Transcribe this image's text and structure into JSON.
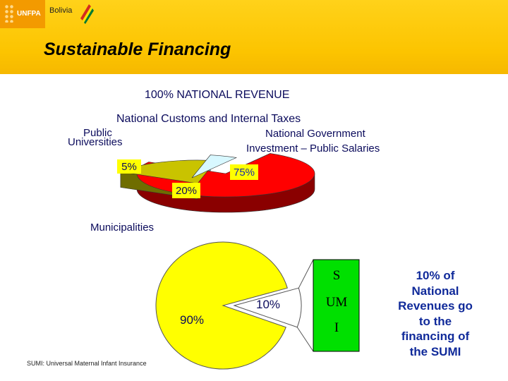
{
  "header": {
    "logo_text": "UNFPA",
    "country": "Bolivia",
    "title": "Sustainable Financing"
  },
  "main": {
    "revenue_heading": "100% NATIONAL REVENUE",
    "customs_label": "National Customs and Internal Taxes",
    "universities_label_1": "Public",
    "universities_label_2": "Universities",
    "government_label_1": "National Government",
    "government_label_2": "Investment – Public Salaries",
    "municipalities_label": "Municipalities",
    "sumi_box_lines": [
      "S",
      "UM",
      "I"
    ],
    "sumi_note_lines": [
      "10% of",
      "National",
      "Revenues go",
      "to the",
      "financing of",
      "the SUMI"
    ],
    "footnote": "SUMI: Universal Maternal Infant Insurance"
  },
  "colors": {
    "header": "#fcc400",
    "red": "#ff0000",
    "red_side": "#8a0000",
    "olive": "#c9c300",
    "olive_side": "#6f6d00",
    "cyan": "#d8f8ff",
    "cyan_side": "#7aa9b4",
    "yellow": "#ffff00",
    "green": "#00e000",
    "label_box": "#ffff00"
  },
  "chart_data": [
    {
      "type": "pie",
      "style": "3d-exploded",
      "title": "100% NATIONAL REVENUE",
      "subtitle": "National Customs and Internal Taxes",
      "slices": [
        {
          "label": "National Government Investment – Public Salaries",
          "value": 75,
          "display": "75%"
        },
        {
          "label": "Municipalities",
          "value": 20,
          "display": "20%"
        },
        {
          "label": "Public Universities",
          "value": 5,
          "display": "5%"
        }
      ]
    },
    {
      "type": "pie",
      "title": "Municipalities",
      "slices": [
        {
          "label": "Municipalities (remaining)",
          "value": 90,
          "display": "90%"
        },
        {
          "label": "SUMI",
          "value": 10,
          "display": "10%"
        }
      ]
    }
  ]
}
